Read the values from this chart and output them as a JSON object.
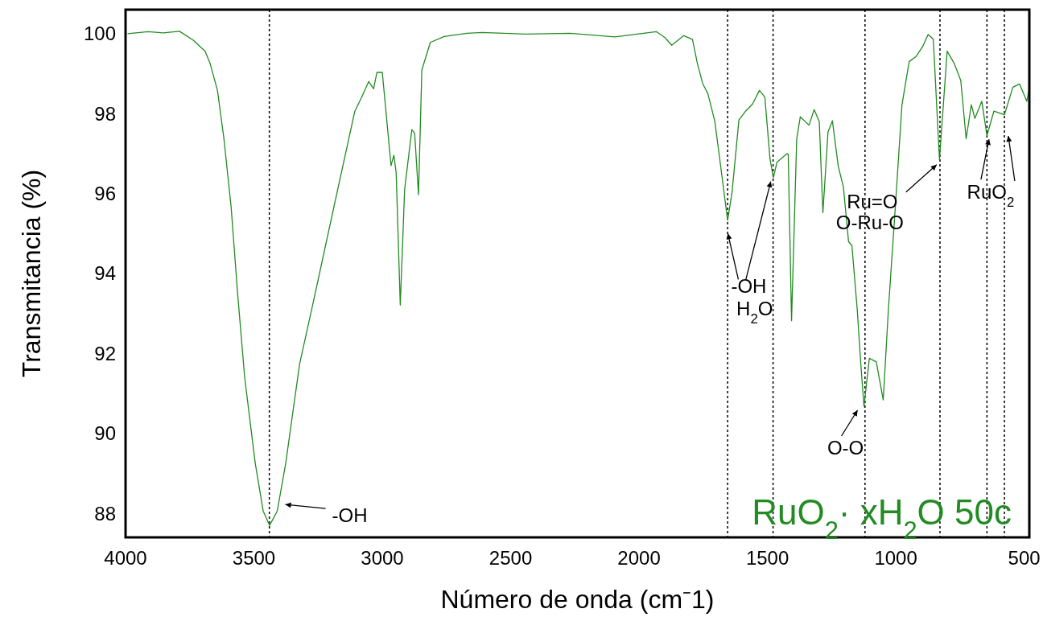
{
  "chart_data": {
    "type": "line",
    "xlabel": "Número de onda (cm⁻1)",
    "ylabel": "Transmitancia (%)",
    "xlim": [
      4000,
      480
    ],
    "ylim": [
      87.4,
      100.6
    ],
    "xticks": [
      4000,
      3500,
      3000,
      2500,
      2000,
      1500,
      1000,
      500
    ],
    "yticks": [
      88,
      90,
      92,
      94,
      96,
      98,
      100
    ],
    "grid": false,
    "legend": "bottom right",
    "marker": "none",
    "line_style": "solid",
    "series": [
      {
        "name": "RuO$_{2}$· xH$_{2}$O 50c",
        "color": "#228b22",
        "x": [
          3992,
          3912,
          3853,
          3790,
          3737,
          3690,
          3671,
          3642,
          3617,
          3589,
          3564,
          3536,
          3495,
          3464,
          3439,
          3409,
          3376,
          3322,
          3269,
          3188,
          3107,
          3081,
          3053,
          3034,
          3021,
          3000,
          2966,
          2955,
          2946,
          2930,
          2913,
          2885,
          2874,
          2859,
          2846,
          2813,
          2759,
          2670,
          2611,
          2442,
          2268,
          2094,
          1933,
          1899,
          1873,
          1826,
          1792,
          1773,
          1752,
          1732,
          1705,
          1679,
          1655,
          1638,
          1611,
          1585,
          1558,
          1531,
          1510,
          1490,
          1477,
          1463,
          1424,
          1419,
          1406,
          1386,
          1372,
          1338,
          1318,
          1298,
          1284,
          1264,
          1247,
          1224,
          1204,
          1184,
          1171,
          1150,
          1137,
          1124,
          1103,
          1076,
          1049,
          1029,
          1002,
          976,
          948,
          921,
          895,
          874,
          854,
          830,
          800,
          773,
          747,
          726,
          706,
          692,
          665,
          645,
          618,
          577,
          544,
          518,
          490,
          480
        ],
        "values": [
          100.0,
          100.05,
          100.02,
          100.06,
          99.84,
          99.56,
          99.26,
          98.58,
          97.38,
          95.68,
          93.54,
          91.4,
          89.26,
          88.06,
          87.7,
          88.06,
          89.26,
          91.74,
          93.28,
          95.68,
          98.06,
          98.4,
          98.8,
          98.62,
          99.03,
          99.03,
          96.7,
          96.96,
          96.52,
          93.21,
          96.1,
          97.6,
          97.51,
          95.97,
          99.09,
          99.78,
          99.93,
          100.01,
          100.03,
          99.99,
          100.01,
          99.92,
          100.05,
          99.9,
          99.71,
          99.95,
          99.86,
          99.26,
          98.75,
          98.5,
          97.81,
          96.53,
          95.33,
          96.02,
          97.84,
          98.06,
          98.24,
          98.58,
          98.41,
          96.87,
          96.4,
          96.78,
          97.0,
          96.98,
          92.82,
          97.37,
          97.92,
          97.71,
          98.1,
          97.8,
          95.52,
          97.54,
          97.82,
          96.68,
          96.16,
          94.8,
          94.7,
          93.08,
          91.79,
          90.68,
          91.88,
          91.79,
          90.84,
          93.08,
          95.65,
          98.22,
          99.3,
          99.43,
          99.68,
          99.98,
          99.86,
          96.85,
          99.56,
          99.26,
          98.83,
          97.37,
          98.22,
          97.88,
          98.31,
          97.45,
          98.06,
          97.97,
          98.66,
          98.74,
          98.31,
          98.62
        ]
      }
    ],
    "ref_lines": [
      {
        "axis": "x",
        "value": 3440,
        "color": "#000000",
        "line_style": "dotted"
      },
      {
        "axis": "x",
        "value": 1655,
        "color": "#000000",
        "line_style": "dotted"
      },
      {
        "axis": "x",
        "value": 1478,
        "color": "#000000",
        "line_style": "dotted"
      },
      {
        "axis": "x",
        "value": 1120,
        "color": "#000000",
        "line_style": "dotted"
      },
      {
        "axis": "x",
        "value": 828,
        "color": "#000000",
        "line_style": "dotted"
      },
      {
        "axis": "x",
        "value": 645,
        "color": "#000000",
        "line_style": "dotted"
      },
      {
        "axis": "x",
        "value": 577,
        "color": "#000000",
        "line_style": "dotted"
      }
    ],
    "annotations": [
      {
        "text": "-OH",
        "x": 3409,
        "y": 88.06
      },
      {
        "text": "-OH",
        "x": 1654,
        "y": 95.0
      },
      {
        "text": "H$_{2}$O",
        "x": 1487,
        "y": 96.3
      },
      {
        "text": "Ru=O",
        "x": 841,
        "y": 96.72
      },
      {
        "text": "O-Ru-O",
        "x": 841,
        "y": 96.72
      },
      {
        "text": "O-O",
        "x": 1124,
        "y": 90.68
      },
      {
        "text": "RuO$_{2}$",
        "x": 637,
        "y": 97.36
      }
    ]
  }
}
